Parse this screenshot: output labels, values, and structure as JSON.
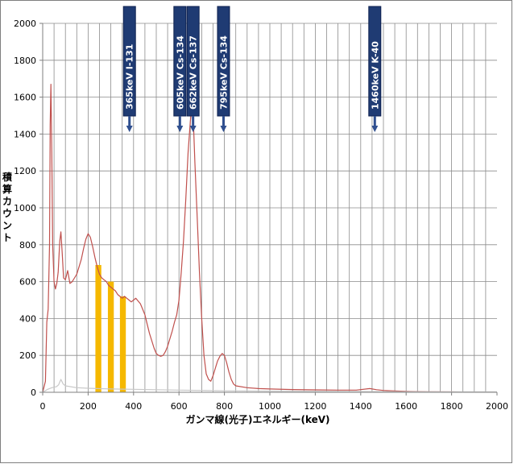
{
  "chart_data": {
    "type": "line",
    "xlabel": "ガンマ線(光子)エネルギー(keV)",
    "ylabel": "積算カウント",
    "xlim": [
      0,
      2000
    ],
    "ylim": [
      0,
      2000
    ],
    "x_ticks": [
      0,
      200,
      400,
      600,
      800,
      1000,
      1200,
      1400,
      1600,
      1800,
      2000
    ],
    "y_ticks": [
      0,
      200,
      400,
      600,
      800,
      1000,
      1200,
      1400,
      1600,
      1800,
      2000
    ],
    "x_minor_step": 50,
    "grid": true,
    "series": [
      {
        "color": "#c0504d",
        "points": [
          [
            0,
            0
          ],
          [
            12,
            60
          ],
          [
            18,
            380
          ],
          [
            24,
            450
          ],
          [
            30,
            800
          ],
          [
            33,
            1450
          ],
          [
            36,
            1670
          ],
          [
            40,
            1300
          ],
          [
            44,
            800
          ],
          [
            50,
            600
          ],
          [
            56,
            560
          ],
          [
            62,
            590
          ],
          [
            68,
            650
          ],
          [
            75,
            820
          ],
          [
            80,
            870
          ],
          [
            86,
            750
          ],
          [
            92,
            620
          ],
          [
            100,
            610
          ],
          [
            110,
            660
          ],
          [
            120,
            590
          ],
          [
            130,
            600
          ],
          [
            140,
            620
          ],
          [
            150,
            640
          ],
          [
            160,
            680
          ],
          [
            170,
            720
          ],
          [
            180,
            780
          ],
          [
            190,
            830
          ],
          [
            200,
            860
          ],
          [
            210,
            840
          ],
          [
            220,
            790
          ],
          [
            230,
            730
          ],
          [
            240,
            680
          ],
          [
            250,
            640
          ],
          [
            260,
            620
          ],
          [
            270,
            610
          ],
          [
            280,
            600
          ],
          [
            290,
            580
          ],
          [
            300,
            570
          ],
          [
            310,
            560
          ],
          [
            320,
            550
          ],
          [
            330,
            530
          ],
          [
            340,
            520
          ],
          [
            350,
            510
          ],
          [
            360,
            520
          ],
          [
            370,
            510
          ],
          [
            380,
            500
          ],
          [
            390,
            490
          ],
          [
            400,
            500
          ],
          [
            410,
            510
          ],
          [
            420,
            495
          ],
          [
            430,
            480
          ],
          [
            440,
            450
          ],
          [
            450,
            420
          ],
          [
            460,
            370
          ],
          [
            470,
            320
          ],
          [
            480,
            280
          ],
          [
            490,
            240
          ],
          [
            500,
            210
          ],
          [
            510,
            200
          ],
          [
            520,
            195
          ],
          [
            530,
            200
          ],
          [
            540,
            220
          ],
          [
            550,
            250
          ],
          [
            560,
            290
          ],
          [
            570,
            330
          ],
          [
            580,
            380
          ],
          [
            590,
            420
          ],
          [
            600,
            500
          ],
          [
            610,
            650
          ],
          [
            620,
            820
          ],
          [
            630,
            1050
          ],
          [
            640,
            1300
          ],
          [
            650,
            1470
          ],
          [
            655,
            1520
          ],
          [
            660,
            1500
          ],
          [
            665,
            1420
          ],
          [
            670,
            1250
          ],
          [
            680,
            950
          ],
          [
            690,
            650
          ],
          [
            700,
            400
          ],
          [
            710,
            200
          ],
          [
            720,
            100
          ],
          [
            730,
            70
          ],
          [
            740,
            60
          ],
          [
            750,
            90
          ],
          [
            760,
            130
          ],
          [
            770,
            170
          ],
          [
            780,
            195
          ],
          [
            790,
            210
          ],
          [
            800,
            200
          ],
          [
            810,
            160
          ],
          [
            820,
            110
          ],
          [
            830,
            70
          ],
          [
            840,
            45
          ],
          [
            850,
            35
          ],
          [
            900,
            25
          ],
          [
            950,
            20
          ],
          [
            1000,
            18
          ],
          [
            1100,
            15
          ],
          [
            1200,
            13
          ],
          [
            1300,
            12
          ],
          [
            1380,
            12
          ],
          [
            1440,
            20
          ],
          [
            1470,
            14
          ],
          [
            1500,
            10
          ],
          [
            1550,
            7
          ],
          [
            1600,
            5
          ],
          [
            1700,
            3
          ],
          [
            1800,
            2
          ],
          [
            1900,
            1
          ],
          [
            2000,
            1
          ]
        ]
      },
      {
        "color": "#c8c8c8",
        "points": [
          [
            0,
            0
          ],
          [
            20,
            15
          ],
          [
            40,
            25
          ],
          [
            60,
            30
          ],
          [
            70,
            40
          ],
          [
            80,
            70
          ],
          [
            90,
            45
          ],
          [
            100,
            35
          ],
          [
            150,
            25
          ],
          [
            200,
            22
          ],
          [
            300,
            18
          ],
          [
            400,
            16
          ],
          [
            500,
            14
          ],
          [
            600,
            12
          ],
          [
            700,
            10
          ],
          [
            800,
            8
          ],
          [
            1000,
            6
          ],
          [
            1200,
            5
          ],
          [
            1400,
            4
          ],
          [
            1600,
            3
          ],
          [
            1800,
            2
          ],
          [
            2000,
            2
          ]
        ]
      }
    ],
    "highlight_bars": {
      "color": "#f5b800",
      "bars": [
        {
          "x0": 232,
          "x1": 258,
          "top": 690
        },
        {
          "x0": 287,
          "x1": 313,
          "top": 600
        },
        {
          "x0": 340,
          "x1": 366,
          "top": 520
        }
      ]
    },
    "markers": [
      {
        "label": "365keV  I-131",
        "x": 382
      },
      {
        "label": "605keV  Cs-134",
        "x": 604
      },
      {
        "label": "662keV  Cs-137",
        "x": 662
      },
      {
        "label": "795keV  Cs-134",
        "x": 796
      },
      {
        "label": "1460keV  K-40",
        "x": 1462
      }
    ]
  }
}
